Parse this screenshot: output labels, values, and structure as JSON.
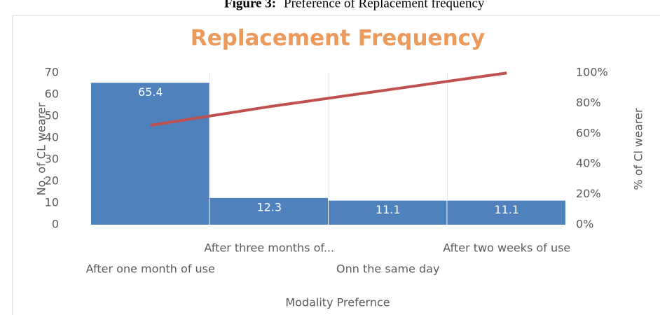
{
  "caption": {
    "label": "Figure 3:",
    "text": "Preference of Replacement frequency"
  },
  "chart_data": {
    "type": "bar",
    "title": "Replacement Frequency",
    "x_label": "Modality Prefernce",
    "y_label": "No. of CL wearer",
    "y2_label": "% of Cl wearer",
    "categories": [
      "After one month of use",
      "After three months of...",
      "Onn the same day",
      "After two weeks of use"
    ],
    "series": [
      {
        "name": "No. of CL wearer",
        "type": "bar",
        "color": "#4f81bd",
        "values": [
          65.4,
          12.3,
          11.1,
          11.1
        ]
      },
      {
        "name": "% of Cl wearer",
        "type": "line",
        "axis": "y2",
        "color": "#c0504d",
        "values": [
          65.4,
          77.7,
          88.8,
          99.9
        ]
      }
    ],
    "ylim": [
      0,
      70
    ],
    "yticks": [
      0,
      10,
      20,
      30,
      40,
      50,
      60,
      70
    ],
    "y2lim": [
      0,
      100
    ],
    "y2ticks": [
      {
        "value": 0,
        "label": "0%"
      },
      {
        "value": 20,
        "label": "20%"
      },
      {
        "value": 40,
        "label": "40%"
      },
      {
        "value": 60,
        "label": "60%"
      },
      {
        "value": 80,
        "label": "80%"
      },
      {
        "value": 100,
        "label": "100%"
      }
    ],
    "grid": false
  }
}
